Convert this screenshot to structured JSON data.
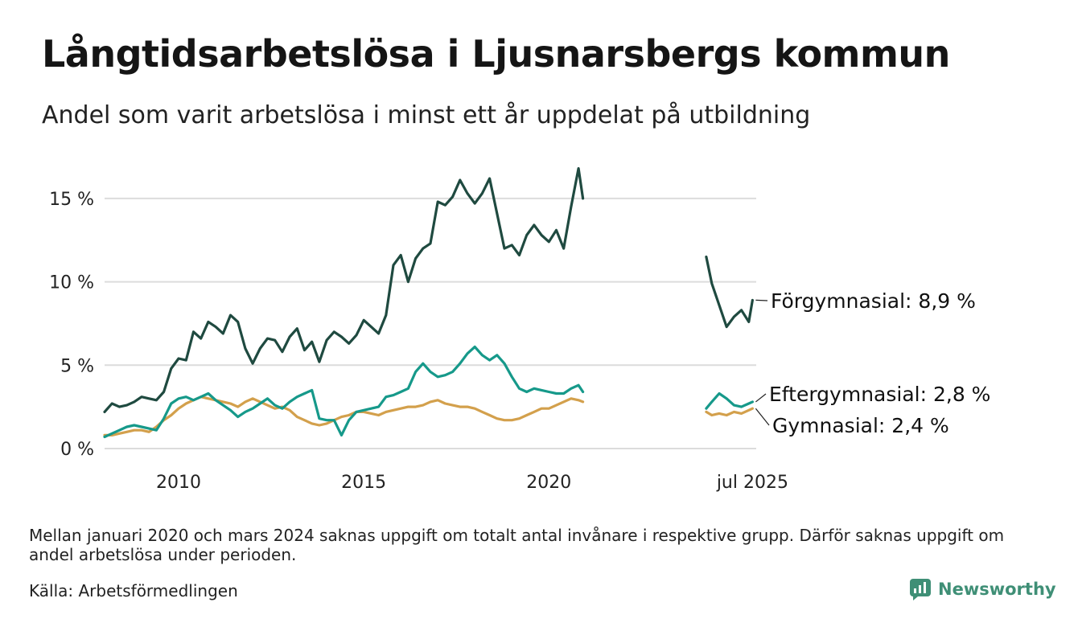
{
  "header": {
    "title": "Långtidsarbetslösa i Ljusnarsbergs kommun",
    "subtitle": "Andel som varit arbetslösa i minst ett år uppdelat på utbildning"
  },
  "footer": {
    "note": "Mellan januari 2020 och mars 2024 saknas uppgift om totalt antal invånare i respektive grupp. Därför saknas uppgift om andel arbetslösa under perioden.",
    "source": "Källa: Arbetsförmedlingen",
    "brand": "Newsworthy"
  },
  "colors": {
    "forgymnasial": "#1f4a40",
    "eftergymnasial": "#16998a",
    "gymnasial": "#d3a04c",
    "grid": "#dcdcdc",
    "brand": "#3f8f76"
  },
  "chart_data": {
    "type": "line",
    "title": "Långtidsarbetslösa i Ljusnarsbergs kommun",
    "subtitle": "Andel som varit arbetslösa i minst ett år uppdelat på utbildning",
    "x_unit": "year (decimal)",
    "xlim": [
      2008.0,
      2025.6
    ],
    "ylim": [
      0,
      17.5
    ],
    "x_ticks": [
      {
        "value": 2010,
        "label": "2010"
      },
      {
        "value": 2015,
        "label": "2015"
      },
      {
        "value": 2020,
        "label": "2020"
      },
      {
        "value": 2025.5,
        "label": "jul 2025"
      }
    ],
    "y_ticks": [
      {
        "value": 0,
        "label": "0 %"
      },
      {
        "value": 5,
        "label": "5 %"
      },
      {
        "value": 10,
        "label": "10 %"
      },
      {
        "value": 15,
        "label": "15 %"
      }
    ],
    "grid": true,
    "series": [
      {
        "name": "Förgymnasial",
        "end_label": "Förgymnasial: 8,9 %",
        "color": "#1f4a40",
        "segments": [
          {
            "x": [
              2008.0,
              2008.2,
              2008.4,
              2008.6,
              2008.8,
              2009.0,
              2009.2,
              2009.4,
              2009.6,
              2009.8,
              2010.0,
              2010.2,
              2010.4,
              2010.6,
              2010.8,
              2011.0,
              2011.2,
              2011.4,
              2011.6,
              2011.8,
              2012.0,
              2012.2,
              2012.4,
              2012.6,
              2012.8,
              2013.0,
              2013.2,
              2013.4,
              2013.6,
              2013.8,
              2014.0,
              2014.2,
              2014.4,
              2014.6,
              2014.8,
              2015.0,
              2015.2,
              2015.4,
              2015.6,
              2015.8,
              2016.0,
              2016.2,
              2016.4,
              2016.6,
              2016.8,
              2017.0,
              2017.2,
              2017.4,
              2017.6,
              2017.8,
              2018.0,
              2018.2,
              2018.4,
              2018.6,
              2018.8,
              2019.0,
              2019.2,
              2019.4,
              2019.6,
              2019.8,
              2020.0,
              2020.2,
              2020.4,
              2020.6,
              2020.8,
              2020.92
            ],
            "y": [
              2.2,
              2.7,
              2.5,
              2.6,
              2.8,
              3.1,
              3.0,
              2.9,
              3.4,
              4.8,
              5.4,
              5.3,
              7.0,
              6.6,
              7.6,
              7.3,
              6.9,
              8.0,
              7.6,
              6.0,
              5.1,
              6.0,
              6.6,
              6.5,
              5.8,
              6.7,
              7.2,
              5.9,
              6.4,
              5.2,
              6.5,
              7.0,
              6.7,
              6.3,
              6.8,
              7.7,
              7.3,
              6.9,
              8.0,
              11.0,
              11.6,
              10.0,
              11.4,
              12.0,
              12.3,
              14.8,
              14.6,
              15.1,
              16.1,
              15.3,
              14.7,
              15.3,
              16.2,
              14.1,
              12.0,
              12.2,
              11.6,
              12.8,
              13.4,
              12.8,
              12.4,
              13.1,
              12.0,
              14.5,
              16.8,
              15.0
            ]
          },
          {
            "x": [
              2024.25,
              2024.4,
              2024.6,
              2024.8,
              2025.0,
              2025.2,
              2025.4,
              2025.5
            ],
            "y": [
              11.5,
              9.9,
              8.6,
              7.3,
              7.9,
              8.3,
              7.6,
              8.9
            ]
          }
        ]
      },
      {
        "name": "Eftergymnasial",
        "end_label": "Eftergymnasial: 2,8 %",
        "color": "#16998a",
        "segments": [
          {
            "x": [
              2008.0,
              2008.2,
              2008.4,
              2008.6,
              2008.8,
              2009.0,
              2009.2,
              2009.4,
              2009.6,
              2009.8,
              2010.0,
              2010.2,
              2010.4,
              2010.6,
              2010.8,
              2011.0,
              2011.2,
              2011.4,
              2011.6,
              2011.8,
              2012.0,
              2012.2,
              2012.4,
              2012.6,
              2012.8,
              2013.0,
              2013.2,
              2013.4,
              2013.6,
              2013.8,
              2014.0,
              2014.2,
              2014.4,
              2014.6,
              2014.8,
              2015.0,
              2015.2,
              2015.4,
              2015.6,
              2015.8,
              2016.0,
              2016.2,
              2016.4,
              2016.6,
              2016.8,
              2017.0,
              2017.2,
              2017.4,
              2017.6,
              2017.8,
              2018.0,
              2018.2,
              2018.4,
              2018.6,
              2018.8,
              2019.0,
              2019.2,
              2019.4,
              2019.6,
              2019.8,
              2020.0,
              2020.2,
              2020.4,
              2020.6,
              2020.8,
              2020.92
            ],
            "y": [
              0.7,
              0.9,
              1.1,
              1.3,
              1.4,
              1.3,
              1.2,
              1.1,
              1.8,
              2.7,
              3.0,
              3.1,
              2.9,
              3.1,
              3.3,
              2.9,
              2.6,
              2.3,
              1.9,
              2.2,
              2.4,
              2.7,
              3.0,
              2.6,
              2.4,
              2.8,
              3.1,
              3.3,
              3.5,
              1.8,
              1.7,
              1.7,
              0.8,
              1.7,
              2.2,
              2.3,
              2.4,
              2.5,
              3.1,
              3.2,
              3.4,
              3.6,
              4.6,
              5.1,
              4.6,
              4.3,
              4.4,
              4.6,
              5.1,
              5.7,
              6.1,
              5.6,
              5.3,
              5.6,
              5.1,
              4.3,
              3.6,
              3.4,
              3.6,
              3.5,
              3.4,
              3.3,
              3.3,
              3.6,
              3.8,
              3.4
            ]
          },
          {
            "x": [
              2024.25,
              2024.4,
              2024.6,
              2024.8,
              2025.0,
              2025.2,
              2025.4,
              2025.5
            ],
            "y": [
              2.4,
              2.8,
              3.3,
              3.0,
              2.6,
              2.5,
              2.7,
              2.8
            ]
          }
        ]
      },
      {
        "name": "Gymnasial",
        "end_label": "Gymnasial: 2,4 %",
        "color": "#d3a04c",
        "segments": [
          {
            "x": [
              2008.0,
              2008.2,
              2008.4,
              2008.6,
              2008.8,
              2009.0,
              2009.2,
              2009.4,
              2009.6,
              2009.8,
              2010.0,
              2010.2,
              2010.4,
              2010.6,
              2010.8,
              2011.0,
              2011.2,
              2011.4,
              2011.6,
              2011.8,
              2012.0,
              2012.2,
              2012.4,
              2012.6,
              2012.8,
              2013.0,
              2013.2,
              2013.4,
              2013.6,
              2013.8,
              2014.0,
              2014.2,
              2014.4,
              2014.6,
              2014.8,
              2015.0,
              2015.2,
              2015.4,
              2015.6,
              2015.8,
              2016.0,
              2016.2,
              2016.4,
              2016.6,
              2016.8,
              2017.0,
              2017.2,
              2017.4,
              2017.6,
              2017.8,
              2018.0,
              2018.2,
              2018.4,
              2018.6,
              2018.8,
              2019.0,
              2019.2,
              2019.4,
              2019.6,
              2019.8,
              2020.0,
              2020.2,
              2020.4,
              2020.6,
              2020.8,
              2020.92
            ],
            "y": [
              0.8,
              0.8,
              0.9,
              1.0,
              1.1,
              1.1,
              1.0,
              1.3,
              1.7,
              2.0,
              2.4,
              2.7,
              2.9,
              3.1,
              3.0,
              2.9,
              2.8,
              2.7,
              2.5,
              2.8,
              3.0,
              2.8,
              2.6,
              2.4,
              2.5,
              2.3,
              1.9,
              1.7,
              1.5,
              1.4,
              1.5,
              1.7,
              1.9,
              2.0,
              2.2,
              2.2,
              2.1,
              2.0,
              2.2,
              2.3,
              2.4,
              2.5,
              2.5,
              2.6,
              2.8,
              2.9,
              2.7,
              2.6,
              2.5,
              2.5,
              2.4,
              2.2,
              2.0,
              1.8,
              1.7,
              1.7,
              1.8,
              2.0,
              2.2,
              2.4,
              2.4,
              2.6,
              2.8,
              3.0,
              2.9,
              2.8
            ]
          },
          {
            "x": [
              2024.25,
              2024.4,
              2024.6,
              2024.8,
              2025.0,
              2025.2,
              2025.4,
              2025.5
            ],
            "y": [
              2.2,
              2.0,
              2.1,
              2.0,
              2.2,
              2.1,
              2.3,
              2.4
            ]
          }
        ]
      }
    ]
  }
}
